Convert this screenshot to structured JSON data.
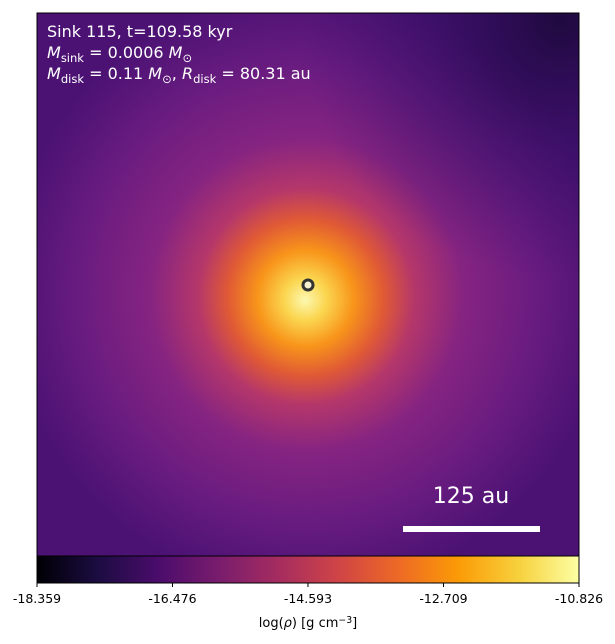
{
  "chart_data": {
    "type": "density-map",
    "annotations": [
      [
        {
          "text": "Sink 115, t=109.58 kyr"
        }
      ],
      [
        {
          "text": "M",
          "italic": true
        },
        {
          "sub": "sink"
        },
        {
          "text": " = 0.0006 "
        },
        {
          "text": "M",
          "italic": true
        },
        {
          "sub": "⊙"
        }
      ],
      [
        {
          "text": "M",
          "italic": true
        },
        {
          "sub": "disk"
        },
        {
          "text": " = 0.11 "
        },
        {
          "text": "M",
          "italic": true
        },
        {
          "sub": "⊙"
        },
        {
          "text": ", "
        },
        {
          "text": "R",
          "italic": true
        },
        {
          "sub": "disk"
        },
        {
          "text": " = 80.31 au"
        }
      ]
    ],
    "scale_bar": {
      "label": "125 au"
    },
    "colorbar": {
      "colormap": "inferno",
      "lim": [
        -18.359,
        -10.826
      ],
      "ticks": [
        -18.359,
        -16.476,
        -14.593,
        -12.709,
        -10.826
      ],
      "label": [
        {
          "text": "log("
        },
        {
          "text": "ρ",
          "italic": true
        },
        {
          "text": ") [g cm"
        },
        {
          "sup": "−3"
        },
        {
          "text": "]"
        }
      ]
    }
  }
}
